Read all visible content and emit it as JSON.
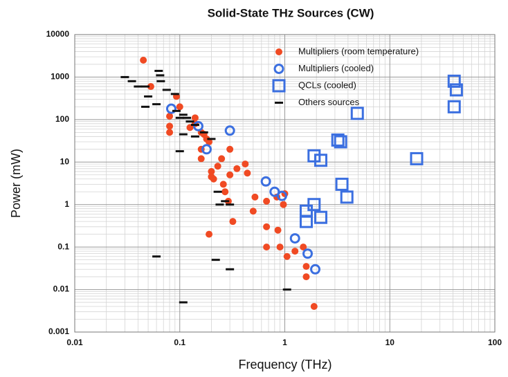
{
  "chart_data": {
    "type": "scatter",
    "title": "Solid-State THz Sources (CW)",
    "x_label": "Frequency (THz)",
    "y_label": "Power (mW)",
    "log_x": true,
    "log_y": true,
    "grid": true,
    "legend": "upper center",
    "xlim": [
      0.01,
      100
    ],
    "xticks": [
      0.01,
      0.1,
      1,
      10,
      100
    ],
    "ylim": [
      0.001,
      10000
    ],
    "yticks": [
      0.001,
      0.01,
      0.1,
      1,
      10,
      100,
      1000,
      10000
    ],
    "series": [
      {
        "name": "Multipliers (room temperature)",
        "color": "#f04a23",
        "marker": "dot",
        "x": [
          0.045,
          0.053,
          0.08,
          0.08,
          0.08,
          0.093,
          0.1,
          0.125,
          0.14,
          0.14,
          0.16,
          0.16,
          0.16,
          0.17,
          0.18,
          0.19,
          0.2,
          0.2,
          0.21,
          0.23,
          0.25,
          0.26,
          0.27,
          0.29,
          0.3,
          0.3,
          0.32,
          0.19,
          0.35,
          0.42,
          0.44,
          0.5,
          0.52,
          0.67,
          0.67,
          0.67,
          0.84,
          0.86,
          0.9,
          0.97,
          1.0,
          1.05,
          1.25,
          1.5,
          1.6,
          1.6,
          1.9
        ],
        "values": [
          2500,
          600,
          120,
          70,
          50,
          350,
          200,
          65,
          110,
          80,
          50,
          20,
          12,
          45,
          35,
          30,
          6,
          4.5,
          4,
          8,
          12,
          3,
          2,
          1.2,
          20,
          5,
          0.4,
          0.2,
          7,
          9,
          5.5,
          0.7,
          1.5,
          0.3,
          0.1,
          1.2,
          1.5,
          0.25,
          0.1,
          1,
          1.8,
          0.06,
          0.08,
          0.1,
          0.035,
          0.02,
          0.004
        ]
      },
      {
        "name": "Multipliers (cooled)",
        "color": "#3b6fe0",
        "marker": "ring",
        "x": [
          0.083,
          0.15,
          0.18,
          0.3,
          0.66,
          0.8,
          0.94,
          1.25,
          1.65,
          1.95
        ],
        "values": [
          180,
          70,
          20,
          55,
          3.5,
          2,
          1.6,
          0.16,
          0.07,
          0.03
        ]
      },
      {
        "name": "QCLs (cooled)",
        "color": "#3b6fe0",
        "marker": "square",
        "x": [
          4.9,
          3.2,
          3.4,
          1.9,
          2.2,
          3.5,
          3.9,
          1.9,
          1.6,
          1.6,
          2.2,
          18,
          41,
          43,
          41
        ],
        "values": [
          140,
          33,
          30,
          14,
          11,
          3,
          1.5,
          1,
          0.7,
          0.4,
          0.5,
          12,
          800,
          500,
          200
        ]
      },
      {
        "name": "Others sources",
        "color": "#111111",
        "marker": "dash",
        "x": [
          0.03,
          0.035,
          0.04,
          0.047,
          0.05,
          0.06,
          0.066,
          0.063,
          0.065,
          0.047,
          0.075,
          0.09,
          0.093,
          0.1,
          0.108,
          0.117,
          0.125,
          0.14,
          0.14,
          0.1,
          0.17,
          0.2,
          0.23,
          0.24,
          0.27,
          0.3,
          0.06,
          0.108,
          0.22,
          0.3,
          1.05,
          0.108
        ],
        "values": [
          1000,
          800,
          600,
          600,
          350,
          230,
          800,
          1400,
          1100,
          200,
          500,
          400,
          160,
          110,
          130,
          110,
          90,
          75,
          40,
          18,
          50,
          35,
          2,
          1,
          1.2,
          1,
          0.06,
          0.005,
          0.05,
          0.03,
          0.01,
          45
        ]
      }
    ]
  }
}
